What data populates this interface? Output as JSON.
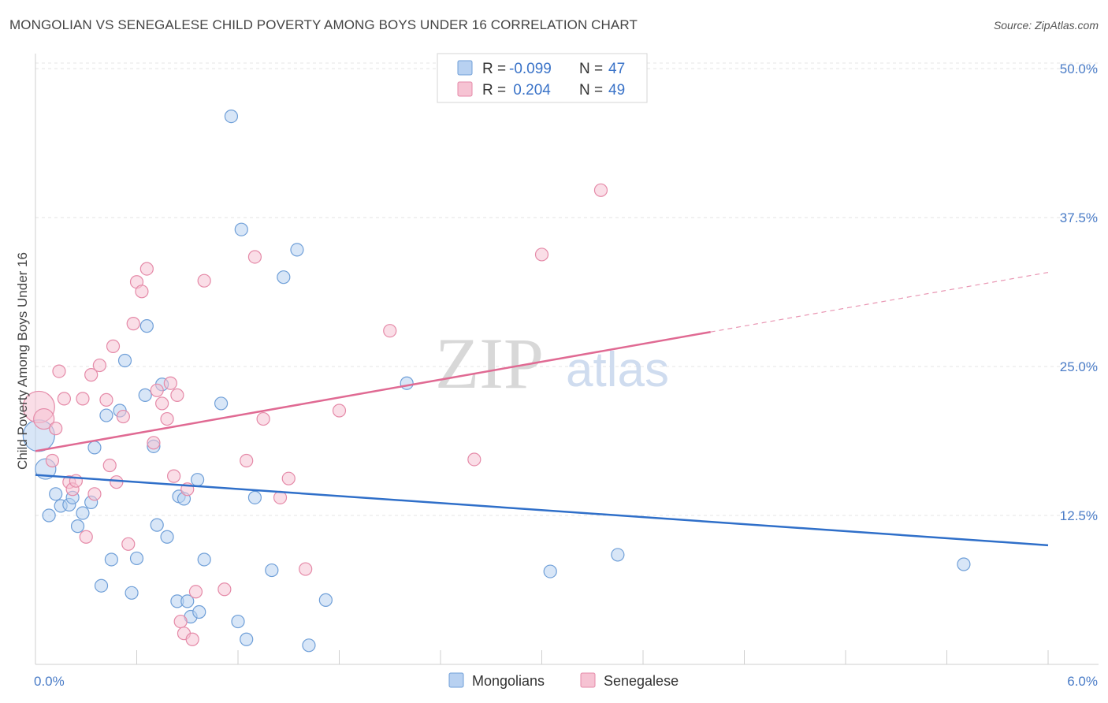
{
  "header": {
    "title": "MONGOLIAN VS SENEGALESE CHILD POVERTY AMONG BOYS UNDER 16 CORRELATION CHART",
    "source": "Source: ZipAtlas.com"
  },
  "watermark": {
    "zip": "ZIP",
    "atlas": "atlas"
  },
  "colors": {
    "mongolians_fill": "#b8d1f1",
    "mongolians_stroke": "#6f9fd8",
    "mongolians_line": "#2f6fc9",
    "senegalese_fill": "#f6c3d3",
    "senegalese_stroke": "#e58aa8",
    "senegalese_line": "#e06a93",
    "axis_text": "#4a7cc7",
    "grid": "#e4e4e4"
  },
  "legend": {
    "rows": [
      {
        "r_label": "R =",
        "r_value": "-0.099",
        "n_label": "N =",
        "n_value": "47"
      },
      {
        "r_label": "R =",
        "r_value": " 0.204",
        "n_label": "N =",
        "n_value": "49"
      }
    ]
  },
  "bottom_legend": {
    "items": [
      "Mongolians",
      "Senegalese"
    ]
  },
  "chart_data": {
    "type": "scatter",
    "title": "MONGOLIAN VS SENEGALESE CHILD POVERTY AMONG BOYS UNDER 16 CORRELATION CHART",
    "xlabel": "",
    "ylabel": "Child Poverty Among Boys Under 16",
    "xlim": [
      0,
      6
    ],
    "ylim": [
      0,
      51
    ],
    "x_tick_labels": [
      "0.0%",
      "6.0%"
    ],
    "y_ticks": [
      12.5,
      25.0,
      37.5,
      50.0
    ],
    "y_tick_labels": [
      "12.5%",
      "25.0%",
      "37.5%",
      "50.0%"
    ],
    "grid": true,
    "series": [
      {
        "name": "Mongolians",
        "r": -0.099,
        "n": 47,
        "trend": {
          "x": [
            0,
            6
          ],
          "y": [
            15.9,
            10.0
          ],
          "dashed_from": null
        },
        "points": [
          [
            0.02,
            19.2,
            "L"
          ],
          [
            0.06,
            16.4,
            "M"
          ],
          [
            0.08,
            12.5
          ],
          [
            0.12,
            14.3
          ],
          [
            0.15,
            13.3
          ],
          [
            0.2,
            13.4
          ],
          [
            0.22,
            14.0
          ],
          [
            0.25,
            11.6
          ],
          [
            0.28,
            12.7
          ],
          [
            0.33,
            13.6
          ],
          [
            0.35,
            18.2
          ],
          [
            0.39,
            6.6
          ],
          [
            0.42,
            20.9
          ],
          [
            0.45,
            8.8
          ],
          [
            0.5,
            21.3
          ],
          [
            0.53,
            25.5
          ],
          [
            0.57,
            6.0
          ],
          [
            0.6,
            8.9
          ],
          [
            0.65,
            22.6
          ],
          [
            0.66,
            28.4
          ],
          [
            0.7,
            18.3
          ],
          [
            0.72,
            11.7
          ],
          [
            0.75,
            23.5
          ],
          [
            0.78,
            10.7
          ],
          [
            0.84,
            5.3
          ],
          [
            0.85,
            14.1
          ],
          [
            0.88,
            13.9
          ],
          [
            0.9,
            5.3
          ],
          [
            0.92,
            4.0
          ],
          [
            0.96,
            15.5
          ],
          [
            0.97,
            4.4
          ],
          [
            1.0,
            8.8
          ],
          [
            1.1,
            21.9
          ],
          [
            1.16,
            46.0
          ],
          [
            1.2,
            3.6
          ],
          [
            1.22,
            36.5
          ],
          [
            1.25,
            2.1
          ],
          [
            1.3,
            14.0
          ],
          [
            1.4,
            7.9
          ],
          [
            1.47,
            32.5
          ],
          [
            1.55,
            34.8
          ],
          [
            1.62,
            1.6
          ],
          [
            1.72,
            5.4
          ],
          [
            2.2,
            23.6
          ],
          [
            3.05,
            7.8
          ],
          [
            3.45,
            9.2
          ],
          [
            5.5,
            8.4
          ]
        ]
      },
      {
        "name": "Senegalese",
        "r": 0.204,
        "n": 49,
        "trend": {
          "x": [
            0,
            6
          ],
          "y": [
            17.9,
            32.9
          ],
          "dashed_from": 4.0
        },
        "points": [
          [
            0.02,
            21.6,
            "L"
          ],
          [
            0.05,
            20.6,
            "M"
          ],
          [
            0.1,
            17.1
          ],
          [
            0.12,
            19.8
          ],
          [
            0.14,
            24.6
          ],
          [
            0.17,
            22.3
          ],
          [
            0.2,
            15.3
          ],
          [
            0.22,
            14.7
          ],
          [
            0.24,
            15.4
          ],
          [
            0.28,
            22.3
          ],
          [
            0.3,
            10.7
          ],
          [
            0.33,
            24.3
          ],
          [
            0.35,
            14.3
          ],
          [
            0.38,
            25.1
          ],
          [
            0.42,
            22.2
          ],
          [
            0.44,
            16.7
          ],
          [
            0.46,
            26.7
          ],
          [
            0.48,
            15.3
          ],
          [
            0.52,
            20.8
          ],
          [
            0.55,
            10.1
          ],
          [
            0.58,
            28.6
          ],
          [
            0.6,
            32.1
          ],
          [
            0.63,
            31.3
          ],
          [
            0.66,
            33.2
          ],
          [
            0.7,
            18.6
          ],
          [
            0.72,
            23.0
          ],
          [
            0.75,
            21.9
          ],
          [
            0.78,
            20.6
          ],
          [
            0.8,
            23.6
          ],
          [
            0.82,
            15.8
          ],
          [
            0.84,
            22.6
          ],
          [
            0.86,
            3.6
          ],
          [
            0.88,
            2.6
          ],
          [
            0.9,
            14.7
          ],
          [
            0.93,
            2.1
          ],
          [
            0.95,
            6.1
          ],
          [
            1.0,
            32.2
          ],
          [
            1.12,
            6.3
          ],
          [
            1.25,
            17.1
          ],
          [
            1.3,
            34.2
          ],
          [
            1.35,
            20.6
          ],
          [
            1.45,
            14.0
          ],
          [
            1.5,
            15.6
          ],
          [
            1.6,
            8.0
          ],
          [
            2.1,
            28.0
          ],
          [
            2.6,
            17.2
          ],
          [
            3.0,
            34.4
          ],
          [
            3.35,
            39.8
          ],
          [
            1.8,
            21.3
          ]
        ]
      }
    ]
  }
}
